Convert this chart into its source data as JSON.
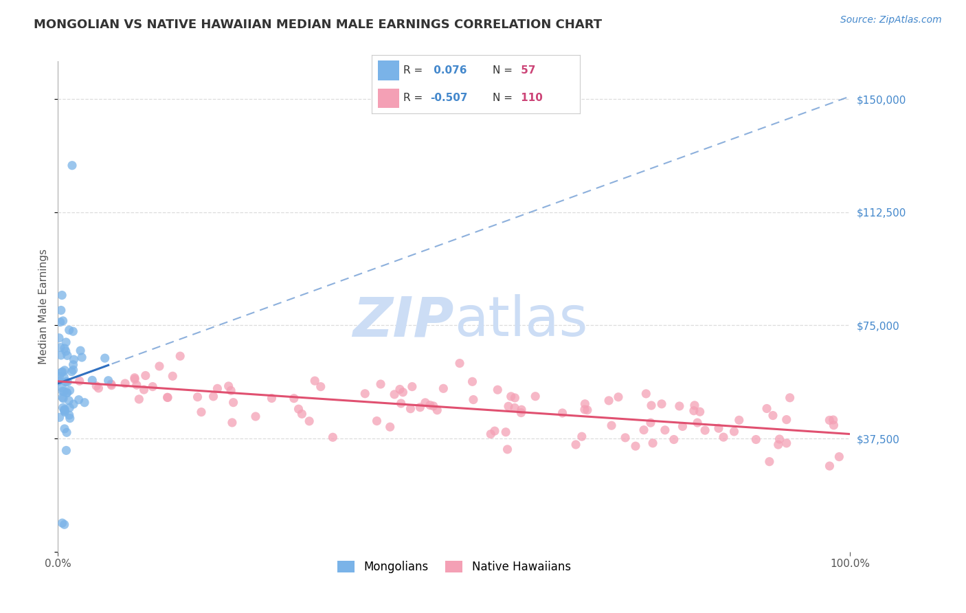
{
  "title": "MONGOLIAN VS NATIVE HAWAIIAN MEDIAN MALE EARNINGS CORRELATION CHART",
  "source_text": "Source: ZipAtlas.com",
  "ylabel": "Median Male Earnings",
  "xlim": [
    0,
    1.0
  ],
  "ylim": [
    0,
    162500
  ],
  "yticks": [
    0,
    37500,
    75000,
    112500,
    150000
  ],
  "ytick_labels": [
    "",
    "$37,500",
    "$75,000",
    "$112,500",
    "$150,000"
  ],
  "mongolian_R": 0.076,
  "mongolian_N": 57,
  "hawaiian_R": -0.507,
  "hawaiian_N": 110,
  "blue_color": "#7ab3e8",
  "pink_color": "#f4a0b5",
  "blue_line_color": "#3070c0",
  "pink_line_color": "#e05070",
  "watermark_color": "#ccddf5",
  "legend_R_color": "#4488cc",
  "legend_N_color": "#cc4477",
  "title_color": "#333333",
  "source_color": "#4488cc",
  "axis_label_color": "#555555",
  "grid_color": "#dddddd",
  "right_ytick_color": "#4488cc"
}
